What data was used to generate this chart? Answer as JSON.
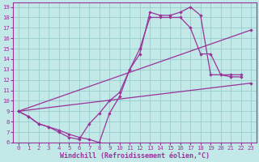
{
  "xlabel": "Windchill (Refroidissement éolien,°C)",
  "xlim": [
    -0.5,
    23.5
  ],
  "ylim": [
    6,
    19.4
  ],
  "xticks": [
    0,
    1,
    2,
    3,
    4,
    5,
    6,
    7,
    8,
    9,
    10,
    11,
    12,
    13,
    14,
    15,
    16,
    17,
    18,
    19,
    20,
    21,
    22,
    23
  ],
  "yticks": [
    6,
    7,
    8,
    9,
    10,
    11,
    12,
    13,
    14,
    15,
    16,
    17,
    18,
    19
  ],
  "bg_color": "#c2e8e8",
  "line_color": "#993399",
  "grid_color": "#99cccc",
  "line1_x": [
    0,
    1,
    2,
    3,
    4,
    5,
    6,
    7,
    8,
    9,
    10,
    11,
    12,
    13,
    14,
    15,
    16,
    17,
    18,
    19,
    20,
    21,
    22
  ],
  "line1_y": [
    9,
    8.5,
    7.8,
    7.5,
    7.2,
    6.8,
    6.5,
    6.3,
    6.0,
    8.8,
    10.4,
    13.0,
    14.5,
    18.5,
    18.2,
    18.2,
    18.5,
    19.0,
    18.2,
    12.5,
    12.5,
    12.3,
    12.3
  ],
  "line2_x": [
    0,
    1,
    2,
    3,
    4,
    5,
    6,
    7,
    8,
    9,
    10,
    11,
    12,
    13,
    14,
    15,
    16,
    17,
    18,
    19,
    20,
    21,
    22
  ],
  "line2_y": [
    9,
    8.5,
    7.8,
    7.5,
    7.0,
    6.5,
    6.3,
    7.8,
    8.8,
    10.0,
    10.8,
    13.0,
    15.0,
    18.0,
    18.0,
    18.0,
    18.0,
    17.0,
    14.5,
    14.5,
    12.5,
    12.5,
    12.5
  ],
  "line3_x": [
    0,
    23
  ],
  "line3_y": [
    9,
    16.8
  ],
  "line4_x": [
    0,
    23
  ],
  "line4_y": [
    9,
    11.7
  ],
  "tick_fontsize": 5.2,
  "label_fontsize": 6.0
}
